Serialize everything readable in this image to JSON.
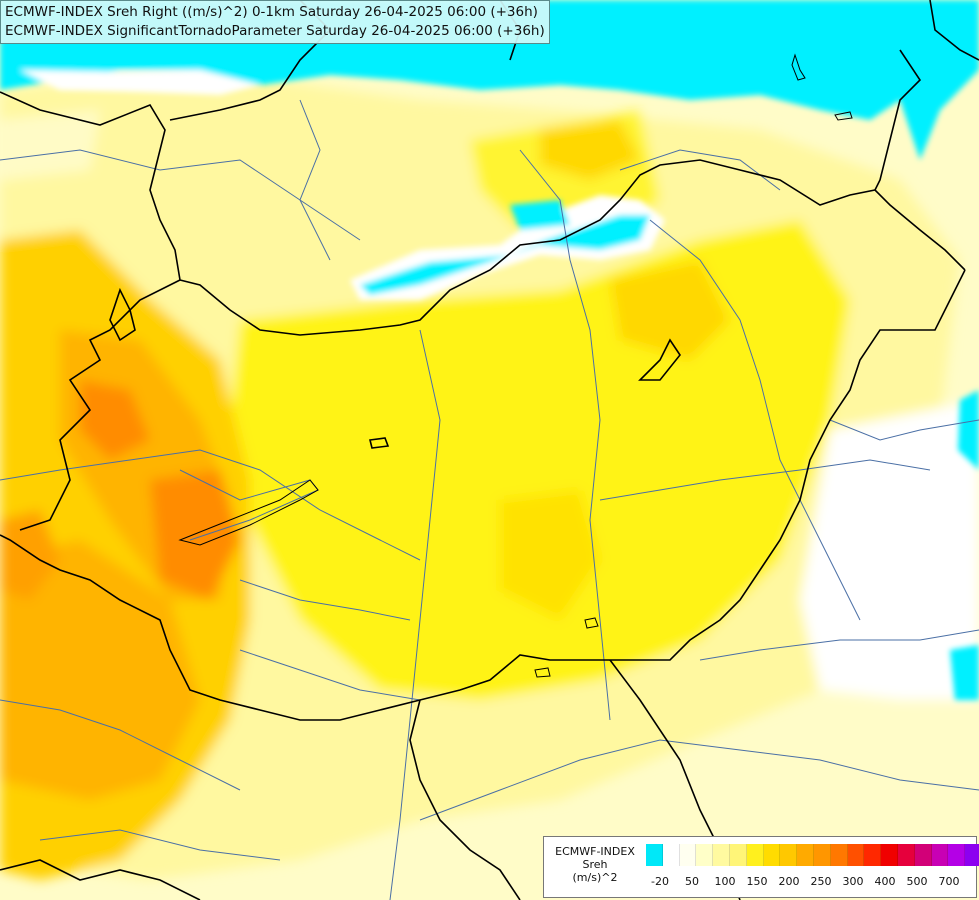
{
  "header": {
    "line1": "ECMWF-INDEX Sreh Right ((m/s)^2) 0-1km Saturday 26-04-2025 06:00 (+36h)",
    "line2": "ECMWF-INDEX SignificantTornadoParameter Saturday 26-04-2025 06:00 (+36h)"
  },
  "legend": {
    "title1": "ECMWF-INDEX",
    "title2": "Sreh",
    "title3": "(m/s)^2",
    "colors": [
      "#00e8f8",
      "#ffffff",
      "#fffff0",
      "#ffffc8",
      "#fffaa0",
      "#fff578",
      "#fff01e",
      "#ffdc00",
      "#ffc800",
      "#ffaa00",
      "#ff9600",
      "#ff7800",
      "#ff5000",
      "#ff2800",
      "#f00000",
      "#e6003c",
      "#d20078",
      "#c800b4",
      "#b400e6",
      "#8c00f0",
      "#6400dc",
      "#3c00b4",
      "#000080"
    ],
    "ticks": [
      "-20",
      "50",
      "100",
      "150",
      "200",
      "250",
      "300",
      "400",
      "500",
      "700"
    ]
  },
  "colors": {
    "cyan": "#00f0ff",
    "white": "#ffffff",
    "pale_yellow": "#fffcc8",
    "light_yellow": "#fff8a0",
    "yellow": "#fff200",
    "yellow_orange": "#ffd800",
    "orange": "#ffb400",
    "dark_orange": "#ff8c00",
    "border": "#000000",
    "river": "#4a6fa5"
  }
}
